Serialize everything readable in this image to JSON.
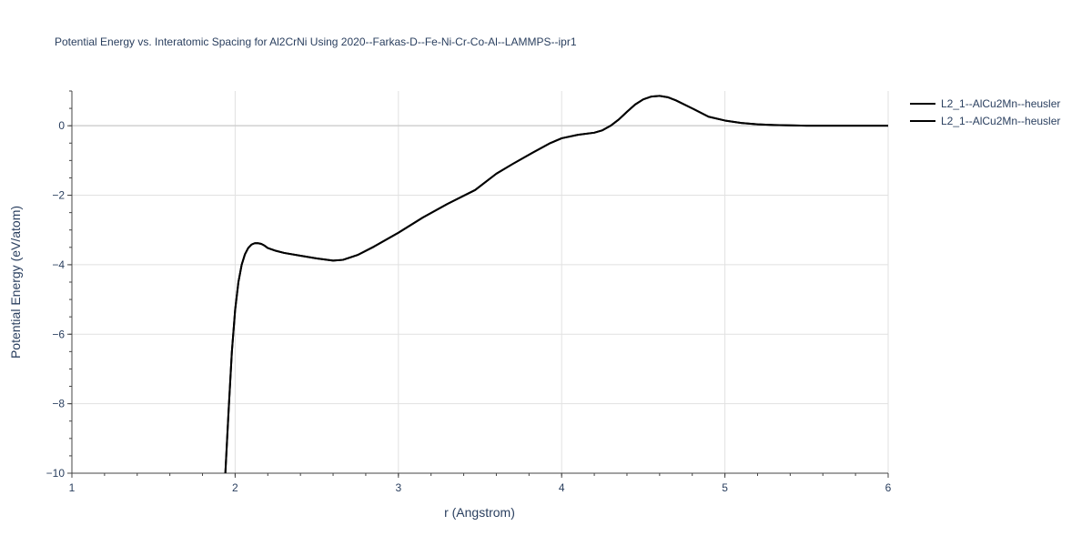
{
  "chart_data": {
    "type": "line",
    "title": "Potential Energy vs. Interatomic Spacing for Al2CrNi Using 2020--Farkas-D--Fe-Ni-Cr-Co-Al--LAMMPS--ipr1",
    "xlabel": "r (Angstrom)",
    "ylabel": "Potential Energy (eV/atom)",
    "xlim": [
      1,
      6
    ],
    "ylim": [
      -10,
      1
    ],
    "x_ticks": [
      1,
      2,
      3,
      4,
      5,
      6
    ],
    "x_tick_labels": [
      "1",
      "2",
      "3",
      "4",
      "5",
      "6"
    ],
    "y_ticks": [
      0,
      -2,
      -4,
      -6,
      -8,
      -10
    ],
    "y_tick_labels": [
      "0",
      "−2",
      "−4",
      "−6",
      "−8",
      "−10"
    ],
    "grid": true,
    "legend_position": "top-right",
    "series": [
      {
        "name": "L2_1--AlCu2Mn--heusler",
        "color": "#000000",
        "x": [
          1.94,
          1.96,
          1.98,
          2.0,
          2.02,
          2.04,
          2.06,
          2.08,
          2.1,
          2.12,
          2.14,
          2.16,
          2.18,
          2.2,
          2.25,
          2.3,
          2.4,
          2.5,
          2.6,
          2.66,
          2.75,
          2.85,
          3.0,
          3.15,
          3.3,
          3.47,
          3.6,
          3.7,
          3.82,
          3.93,
          4.0,
          4.1,
          4.2,
          4.25,
          4.3,
          4.35,
          4.4,
          4.45,
          4.5,
          4.55,
          4.6,
          4.65,
          4.7,
          4.8,
          4.9,
          5.0,
          5.1,
          5.2,
          5.3,
          5.4,
          5.5,
          5.6,
          5.7,
          5.8,
          6.0
        ],
        "y": [
          -10.0,
          -8.2,
          -6.5,
          -5.3,
          -4.5,
          -4.0,
          -3.7,
          -3.52,
          -3.42,
          -3.38,
          -3.38,
          -3.4,
          -3.45,
          -3.52,
          -3.6,
          -3.66,
          -3.74,
          -3.82,
          -3.88,
          -3.86,
          -3.72,
          -3.48,
          -3.08,
          -2.64,
          -2.25,
          -1.85,
          -1.38,
          -1.1,
          -0.78,
          -0.5,
          -0.36,
          -0.26,
          -0.2,
          -0.13,
          0.0,
          0.18,
          0.4,
          0.61,
          0.76,
          0.84,
          0.86,
          0.82,
          0.73,
          0.5,
          0.26,
          0.15,
          0.08,
          0.04,
          0.02,
          0.01,
          0.0,
          0.0,
          0.0,
          0.0,
          0.0
        ]
      },
      {
        "name": "L2_1--AlCu2Mn--heusler",
        "color": "#000000",
        "x": [
          1.94,
          1.96,
          1.98,
          2.0,
          2.02,
          2.04,
          2.06,
          2.08,
          2.1,
          2.12,
          2.14,
          2.16,
          2.18,
          2.2,
          2.25,
          2.3,
          2.4,
          2.5,
          2.6,
          2.66,
          2.75,
          2.85,
          3.0,
          3.15,
          3.3,
          3.47,
          3.6,
          3.7,
          3.82,
          3.93,
          4.0,
          4.1,
          4.2,
          4.25,
          4.3,
          4.35,
          4.4,
          4.45,
          4.5,
          4.55,
          4.6,
          4.65,
          4.7,
          4.8,
          4.9,
          5.0,
          5.1,
          5.2,
          5.3,
          5.4,
          5.5,
          5.6,
          5.7,
          5.8,
          6.0
        ],
        "y": [
          -10.0,
          -8.2,
          -6.5,
          -5.3,
          -4.5,
          -4.0,
          -3.7,
          -3.52,
          -3.42,
          -3.38,
          -3.38,
          -3.4,
          -3.45,
          -3.52,
          -3.6,
          -3.66,
          -3.74,
          -3.82,
          -3.88,
          -3.86,
          -3.72,
          -3.48,
          -3.08,
          -2.64,
          -2.25,
          -1.85,
          -1.38,
          -1.1,
          -0.78,
          -0.5,
          -0.36,
          -0.26,
          -0.2,
          -0.13,
          0.0,
          0.18,
          0.4,
          0.61,
          0.76,
          0.84,
          0.86,
          0.82,
          0.73,
          0.5,
          0.26,
          0.15,
          0.08,
          0.04,
          0.02,
          0.01,
          0.0,
          0.0,
          0.0,
          0.0,
          0.0
        ]
      }
    ]
  }
}
